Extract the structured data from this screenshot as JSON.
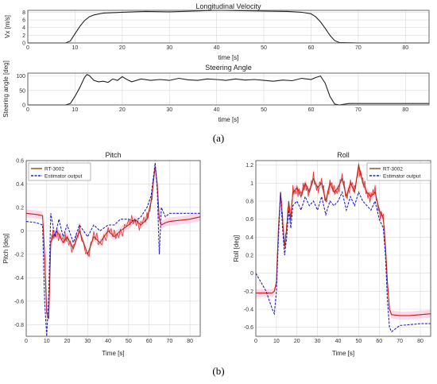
{
  "captions": {
    "a": "(a)",
    "b": "(b)"
  },
  "colors": {
    "black": "#222222",
    "brown": "#8b4a1e",
    "red": "#e01010",
    "blue": "#2020d0",
    "band": "#ffb6d9"
  },
  "chart_data": [
    {
      "id": "velocity",
      "type": "line",
      "title": "Longitudinal Velocity",
      "xlabel": "time [s]",
      "ylabel": "Vx [m/s]",
      "xlim": [
        0,
        85
      ],
      "ylim": [
        0,
        8.5
      ],
      "xticks": [
        0,
        10,
        20,
        30,
        40,
        50,
        60,
        70,
        80
      ],
      "yticks": [
        0,
        2,
        4,
        6,
        8
      ],
      "grid": true,
      "series": [
        {
          "color": "#222222",
          "x": [
            0,
            8,
            9,
            10,
            11,
            12,
            13,
            14,
            16,
            20,
            25,
            30,
            35,
            40,
            45,
            50,
            55,
            58,
            60,
            61,
            62,
            63,
            64,
            65,
            66,
            70,
            85
          ],
          "y": [
            0,
            0,
            0.5,
            2.4,
            4.3,
            5.8,
            6.8,
            7.3,
            7.8,
            8.0,
            8.2,
            8.1,
            8.3,
            8.5,
            8.4,
            8.3,
            8.2,
            8.0,
            7.6,
            6.8,
            5.5,
            3.8,
            2.0,
            0.6,
            0.1,
            0,
            0
          ]
        }
      ]
    },
    {
      "id": "steering",
      "type": "line",
      "title": "Steering Angle",
      "xlabel": "time [s]",
      "ylabel": "Steering angle [deg]",
      "xlim": [
        0,
        85
      ],
      "ylim": [
        0,
        110
      ],
      "xticks": [
        0,
        10,
        20,
        30,
        40,
        50,
        60,
        70,
        80
      ],
      "yticks": [
        0,
        50,
        100
      ],
      "grid": true,
      "series": [
        {
          "color": "#222222",
          "x": [
            0,
            8,
            9,
            10,
            11,
            12,
            12.5,
            13,
            14,
            15,
            16,
            17,
            18,
            19,
            20,
            21,
            22,
            24,
            26,
            28,
            30,
            32,
            34,
            36,
            38,
            40,
            42,
            44,
            46,
            48,
            50,
            52,
            54,
            56,
            58,
            60,
            61,
            62,
            63,
            64,
            65,
            66,
            68,
            70,
            85
          ],
          "y": [
            0,
            0,
            5,
            30,
            60,
            95,
            105,
            102,
            85,
            80,
            82,
            78,
            90,
            85,
            98,
            88,
            80,
            90,
            85,
            88,
            85,
            92,
            87,
            85,
            90,
            88,
            85,
            90,
            86,
            88,
            85,
            82,
            86,
            84,
            92,
            88,
            95,
            100,
            75,
            30,
            3,
            0,
            5,
            5,
            5
          ]
        }
      ]
    },
    {
      "id": "pitch",
      "type": "line",
      "title": "Pitch",
      "xlabel": "Time [s]",
      "ylabel": "Pitch [deg]",
      "xlim": [
        0,
        85
      ],
      "ylim": [
        -0.9,
        0.6
      ],
      "xticks": [
        0,
        10,
        20,
        30,
        40,
        50,
        60,
        70,
        80
      ],
      "yticks": [
        -0.8,
        -0.6,
        -0.4,
        -0.2,
        0,
        0.2,
        0.4,
        0.6
      ],
      "grid": true,
      "legend": {
        "position": "top-left",
        "entries": [
          "RT-3002",
          "Estimator output"
        ]
      },
      "series": [
        {
          "name": "RT-3002",
          "color": "#8b4a1e",
          "x": [
            0,
            5,
            8,
            9,
            10,
            11,
            12,
            13,
            15,
            18,
            20,
            23,
            26,
            30,
            33,
            36,
            40,
            43,
            46,
            50,
            53,
            56,
            59,
            61,
            63,
            64,
            65,
            66,
            68,
            70,
            75,
            80,
            85
          ],
          "y": [
            0.15,
            0.14,
            0.13,
            -0.2,
            -0.7,
            -0.75,
            -0.1,
            -0.05,
            0.0,
            -0.1,
            -0.05,
            -0.15,
            0.0,
            -0.2,
            -0.05,
            -0.1,
            0.0,
            -0.05,
            0.0,
            0.05,
            0.1,
            0.05,
            0.1,
            0.25,
            0.55,
            0.4,
            0.1,
            0.05,
            0.07,
            0.08,
            0.09,
            0.1,
            0.12
          ]
        },
        {
          "name": "Estimator output",
          "color": "#2020d0",
          "x": [
            0,
            5,
            8,
            9,
            10,
            11,
            12,
            13,
            14,
            16,
            18,
            20,
            23,
            26,
            30,
            33,
            36,
            40,
            43,
            46,
            50,
            53,
            56,
            59,
            61,
            63,
            64,
            65,
            66,
            68,
            70,
            75,
            80,
            85
          ],
          "y": [
            0.08,
            0.07,
            0.05,
            -0.6,
            -0.9,
            -0.55,
            0.15,
            0.05,
            -0.05,
            0.1,
            -0.05,
            0.05,
            -0.1,
            0.05,
            -0.05,
            0.05,
            0.0,
            0.05,
            0.05,
            0.1,
            0.1,
            0.08,
            0.12,
            0.2,
            0.3,
            0.58,
            0.35,
            -0.2,
            0.2,
            0.12,
            0.15,
            0.15,
            0.15,
            0.15
          ]
        }
      ]
    },
    {
      "id": "roll",
      "type": "line",
      "title": "Roll",
      "xlabel": "Time [s]",
      "ylabel": "Roll [deg]",
      "xlim": [
        0,
        85
      ],
      "ylim": [
        -0.7,
        1.25
      ],
      "xticks": [
        0,
        10,
        20,
        30,
        40,
        50,
        60,
        70,
        80
      ],
      "yticks": [
        -0.6,
        -0.4,
        -0.2,
        0,
        0.2,
        0.4,
        0.6,
        0.8,
        1,
        1.2
      ],
      "grid": true,
      "legend": {
        "position": "top-right",
        "entries": [
          "RT-3002",
          "Estimator output"
        ]
      },
      "series": [
        {
          "name": "RT-3002",
          "color": "#8b4a1e",
          "x": [
            0,
            5,
            8,
            9,
            10,
            11,
            12,
            13,
            14,
            15,
            16,
            17,
            18,
            20,
            22,
            24,
            26,
            28,
            30,
            32,
            34,
            36,
            38,
            40,
            42,
            44,
            46,
            48,
            50,
            52,
            54,
            56,
            58,
            60,
            62,
            63,
            64,
            65,
            66,
            70,
            75,
            80,
            85
          ],
          "y": [
            -0.22,
            -0.22,
            -0.22,
            -0.2,
            -0.1,
            0.5,
            0.9,
            0.6,
            0.3,
            0.5,
            0.8,
            0.6,
            0.9,
            0.95,
            0.85,
            1.0,
            0.9,
            1.05,
            0.95,
            1.0,
            0.8,
            1.0,
            0.9,
            0.95,
            1.05,
            0.85,
            1.0,
            0.9,
            1.2,
            1.0,
            0.9,
            0.85,
            0.9,
            0.7,
            0.6,
            0.3,
            -0.1,
            -0.4,
            -0.46,
            -0.47,
            -0.47,
            -0.46,
            -0.45
          ]
        },
        {
          "name": "Estimator output",
          "color": "#2020d0",
          "x": [
            0,
            5,
            8,
            9,
            10,
            11,
            12,
            13,
            14,
            15,
            16,
            17,
            18,
            20,
            22,
            24,
            26,
            28,
            30,
            32,
            34,
            36,
            38,
            40,
            42,
            44,
            46,
            48,
            50,
            52,
            54,
            56,
            58,
            60,
            62,
            63,
            64,
            65,
            66,
            70,
            75,
            80,
            85
          ],
          "y": [
            0.0,
            -0.2,
            -0.4,
            -0.45,
            -0.2,
            0.4,
            0.9,
            0.5,
            0.2,
            0.4,
            0.7,
            0.5,
            0.75,
            0.8,
            0.7,
            0.85,
            0.75,
            0.8,
            0.7,
            0.85,
            0.65,
            0.8,
            0.75,
            0.8,
            0.9,
            0.7,
            0.85,
            0.75,
            0.9,
            0.8,
            0.75,
            0.7,
            0.8,
            0.6,
            0.5,
            0.2,
            -0.3,
            -0.6,
            -0.65,
            -0.58,
            -0.57,
            -0.56,
            -0.56
          ]
        }
      ]
    }
  ]
}
